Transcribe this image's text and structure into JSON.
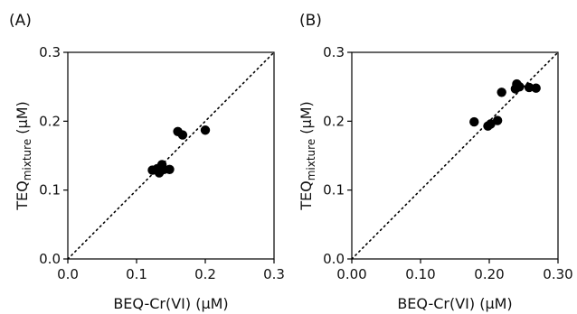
{
  "chart_data": [
    {
      "type": "scatter",
      "panel_label": "(A)",
      "xlabel": "BEQ-Cr(VI) (μM)",
      "ylabel": {
        "main": "TEQ",
        "sub": "mixture",
        "unit": " (μM)"
      },
      "xlim": [
        0,
        0.3
      ],
      "ylim": [
        0,
        0.3
      ],
      "xticks": [
        0,
        0.1,
        0.2,
        0.3
      ],
      "xtick_labels": [
        "0.0",
        "0.1",
        "0.2",
        "0.3"
      ],
      "yticks": [
        0,
        0.1,
        0.2,
        0.3
      ],
      "ytick_labels": [
        "0.0",
        "0.1",
        "0.2",
        "0.3"
      ],
      "reference_line": "y = x (dotted)",
      "grid": false,
      "points": [
        {
          "x": 0.123,
          "y": 0.129
        },
        {
          "x": 0.13,
          "y": 0.131
        },
        {
          "x": 0.133,
          "y": 0.125
        },
        {
          "x": 0.137,
          "y": 0.137
        },
        {
          "x": 0.14,
          "y": 0.13
        },
        {
          "x": 0.148,
          "y": 0.13
        },
        {
          "x": 0.16,
          "y": 0.185
        },
        {
          "x": 0.167,
          "y": 0.18
        },
        {
          "x": 0.2,
          "y": 0.187
        }
      ]
    },
    {
      "type": "scatter",
      "panel_label": "(B)",
      "xlabel": "BEQ-Cr(VI) (μM)",
      "ylabel": {
        "main": "TEQ",
        "sub": "mixture",
        "unit": " (μM)"
      },
      "xlim": [
        0,
        0.3
      ],
      "ylim": [
        0,
        0.3
      ],
      "xticks": [
        0,
        0.1,
        0.2,
        0.3
      ],
      "xtick_labels": [
        "0.00",
        "0.10",
        "0.20",
        "0.30"
      ],
      "yticks": [
        0,
        0.1,
        0.2,
        0.3
      ],
      "ytick_labels": [
        "0.0",
        "0.1",
        "0.2",
        "0.3"
      ],
      "reference_line": "y = x (dotted)",
      "grid": false,
      "points": [
        {
          "x": 0.178,
          "y": 0.199
        },
        {
          "x": 0.198,
          "y": 0.193
        },
        {
          "x": 0.202,
          "y": 0.196
        },
        {
          "x": 0.212,
          "y": 0.201
        },
        {
          "x": 0.218,
          "y": 0.242
        },
        {
          "x": 0.238,
          "y": 0.247
        },
        {
          "x": 0.24,
          "y": 0.254
        },
        {
          "x": 0.244,
          "y": 0.25
        },
        {
          "x": 0.258,
          "y": 0.249
        },
        {
          "x": 0.268,
          "y": 0.248
        }
      ]
    }
  ]
}
